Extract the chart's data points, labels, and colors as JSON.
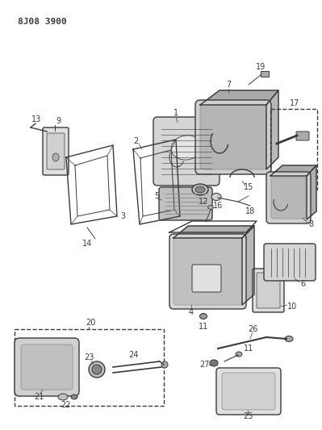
{
  "title": "8J08 3900",
  "bg_color": "#ffffff",
  "line_color": "#3a3a3a",
  "fig_width": 3.99,
  "fig_height": 5.33,
  "dpi": 100
}
